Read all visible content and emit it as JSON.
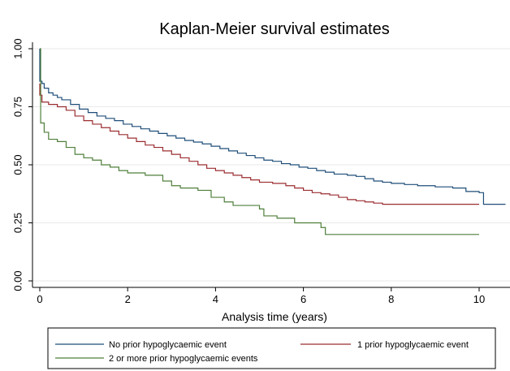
{
  "chart_data": {
    "type": "line",
    "title": "Kaplan-Meier survival estimates",
    "xlabel": "Analysis time (years)",
    "ylabel": "",
    "xlim": [
      0,
      10.6
    ],
    "ylim": [
      0,
      1
    ],
    "x_ticks": [
      0,
      2,
      4,
      6,
      8,
      10
    ],
    "y_ticks": [
      "0.00",
      "0.25",
      "0.50",
      "0.75",
      "1.00"
    ],
    "grid": "horizontal",
    "legend_position": "bottom",
    "series": [
      {
        "name": "No prior hypoglycaemic event",
        "color": "#1f4e79",
        "points": [
          [
            0,
            1.0
          ],
          [
            0,
            0.86
          ],
          [
            0.05,
            0.85
          ],
          [
            0.1,
            0.83
          ],
          [
            0.2,
            0.81
          ],
          [
            0.3,
            0.8
          ],
          [
            0.4,
            0.79
          ],
          [
            0.5,
            0.78
          ],
          [
            0.7,
            0.76
          ],
          [
            0.9,
            0.74
          ],
          [
            1.1,
            0.725
          ],
          [
            1.3,
            0.71
          ],
          [
            1.5,
            0.7
          ],
          [
            1.7,
            0.69
          ],
          [
            1.9,
            0.675
          ],
          [
            2.1,
            0.665
          ],
          [
            2.3,
            0.655
          ],
          [
            2.5,
            0.645
          ],
          [
            2.7,
            0.635
          ],
          [
            2.9,
            0.625
          ],
          [
            3.1,
            0.615
          ],
          [
            3.3,
            0.605
          ],
          [
            3.5,
            0.598
          ],
          [
            3.7,
            0.59
          ],
          [
            3.9,
            0.58
          ],
          [
            4.1,
            0.57
          ],
          [
            4.3,
            0.56
          ],
          [
            4.5,
            0.55
          ],
          [
            4.7,
            0.54
          ],
          [
            4.9,
            0.53
          ],
          [
            5.1,
            0.52
          ],
          [
            5.3,
            0.515
          ],
          [
            5.5,
            0.505
          ],
          [
            5.7,
            0.5
          ],
          [
            5.9,
            0.49
          ],
          [
            6.1,
            0.485
          ],
          [
            6.3,
            0.475
          ],
          [
            6.5,
            0.468
          ],
          [
            6.7,
            0.46
          ],
          [
            7.0,
            0.455
          ],
          [
            7.2,
            0.45
          ],
          [
            7.4,
            0.44
          ],
          [
            7.6,
            0.43
          ],
          [
            7.8,
            0.425
          ],
          [
            8.0,
            0.42
          ],
          [
            8.3,
            0.415
          ],
          [
            8.6,
            0.41
          ],
          [
            9.0,
            0.405
          ],
          [
            9.4,
            0.4
          ],
          [
            9.7,
            0.385
          ],
          [
            10.0,
            0.38
          ],
          [
            10.1,
            0.33
          ],
          [
            10.6,
            0.33
          ]
        ]
      },
      {
        "name": "1 prior hypoglycaemic event",
        "color": "#9b2d30",
        "points": [
          [
            0,
            0.85
          ],
          [
            0,
            0.8
          ],
          [
            0.05,
            0.77
          ],
          [
            0.2,
            0.76
          ],
          [
            0.4,
            0.75
          ],
          [
            0.6,
            0.735
          ],
          [
            0.8,
            0.71
          ],
          [
            1.0,
            0.69
          ],
          [
            1.2,
            0.675
          ],
          [
            1.4,
            0.66
          ],
          [
            1.6,
            0.645
          ],
          [
            1.8,
            0.63
          ],
          [
            2.0,
            0.615
          ],
          [
            2.2,
            0.6
          ],
          [
            2.4,
            0.585
          ],
          [
            2.6,
            0.575
          ],
          [
            2.8,
            0.56
          ],
          [
            3.0,
            0.545
          ],
          [
            3.2,
            0.53
          ],
          [
            3.4,
            0.515
          ],
          [
            3.6,
            0.5
          ],
          [
            3.8,
            0.485
          ],
          [
            4.0,
            0.475
          ],
          [
            4.2,
            0.465
          ],
          [
            4.4,
            0.455
          ],
          [
            4.6,
            0.445
          ],
          [
            4.8,
            0.435
          ],
          [
            5.0,
            0.425
          ],
          [
            5.3,
            0.42
          ],
          [
            5.6,
            0.41
          ],
          [
            5.8,
            0.4
          ],
          [
            6.0,
            0.39
          ],
          [
            6.2,
            0.38
          ],
          [
            6.4,
            0.375
          ],
          [
            6.6,
            0.37
          ],
          [
            6.8,
            0.36
          ],
          [
            7.0,
            0.35
          ],
          [
            7.2,
            0.345
          ],
          [
            7.4,
            0.34
          ],
          [
            7.6,
            0.335
          ],
          [
            7.8,
            0.33
          ],
          [
            10.0,
            0.33
          ]
        ]
      },
      {
        "name": "2 or more prior hypoglycaemic events",
        "color": "#4f7f3a",
        "points": [
          [
            0,
            1.0
          ],
          [
            0.02,
            0.68
          ],
          [
            0.1,
            0.64
          ],
          [
            0.2,
            0.61
          ],
          [
            0.4,
            0.6
          ],
          [
            0.6,
            0.575
          ],
          [
            0.8,
            0.545
          ],
          [
            1.0,
            0.53
          ],
          [
            1.2,
            0.52
          ],
          [
            1.4,
            0.5
          ],
          [
            1.6,
            0.49
          ],
          [
            1.8,
            0.475
          ],
          [
            2.0,
            0.465
          ],
          [
            2.4,
            0.455
          ],
          [
            2.8,
            0.43
          ],
          [
            3.0,
            0.41
          ],
          [
            3.2,
            0.4
          ],
          [
            3.6,
            0.39
          ],
          [
            3.9,
            0.36
          ],
          [
            4.2,
            0.34
          ],
          [
            4.4,
            0.325
          ],
          [
            5.0,
            0.31
          ],
          [
            5.1,
            0.28
          ],
          [
            5.4,
            0.27
          ],
          [
            5.8,
            0.25
          ],
          [
            6.4,
            0.23
          ],
          [
            6.5,
            0.2
          ],
          [
            10.0,
            0.2
          ]
        ]
      }
    ]
  }
}
